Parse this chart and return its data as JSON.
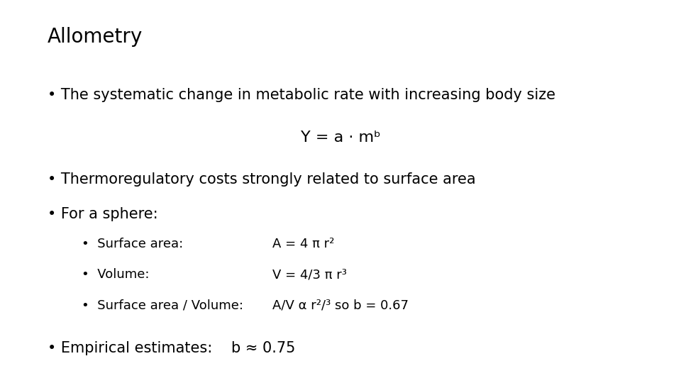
{
  "title": "Allometry",
  "background_color": "#ffffff",
  "text_color": "#000000",
  "title_fontsize": 20,
  "body_fontsize": 15,
  "sub_fontsize": 13,
  "bullet1": "The systematic change in metabolic rate with increasing body size",
  "formula": "Y = a · mᵇ",
  "bullet2": "Thermoregulatory costs strongly related to surface area",
  "bullet3": "For a sphere:",
  "sub1_label": "•  Surface area:",
  "sub1_val": "A = 4 π r²",
  "sub2_label": "•  Volume:",
  "sub2_val": "V = 4/3 π r³",
  "sub3_label": "•  Surface area / Volume:",
  "sub3_val": "A/V α r²/³ so b = 0.67",
  "bullet4_label": "Empirical estimates:",
  "bullet4_val": "b ≈ 0.75"
}
